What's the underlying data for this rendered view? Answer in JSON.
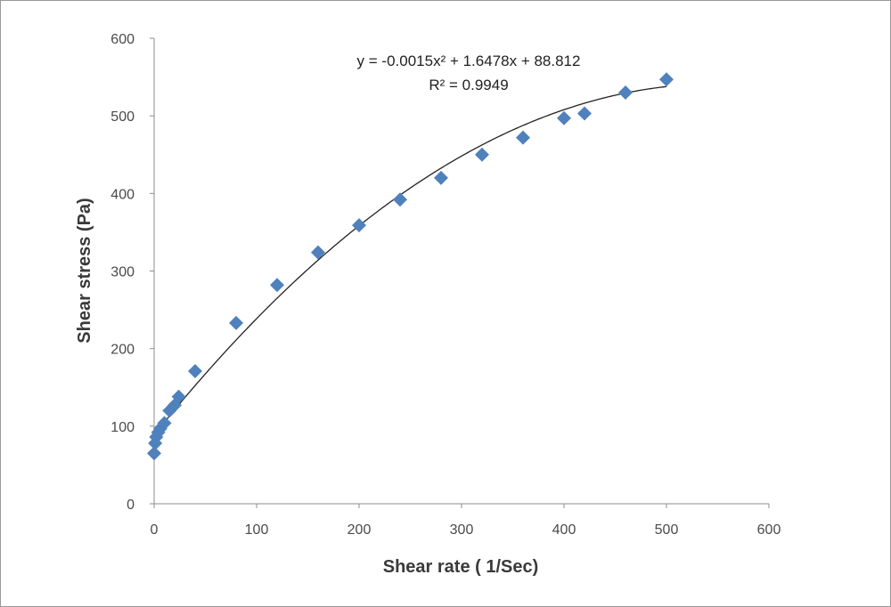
{
  "chart_data": {
    "type": "scatter",
    "title": "",
    "xlabel": "Shear rate ( 1/Sec)",
    "ylabel": "Shear stress (Pa)",
    "xlim": [
      0,
      600
    ],
    "ylim": [
      0,
      600
    ],
    "xticks": [
      "0",
      "100",
      "200",
      "300",
      "400",
      "500",
      "600"
    ],
    "yticks": [
      "0",
      "100",
      "200",
      "300",
      "400",
      "500",
      "600"
    ],
    "grid": false,
    "legend": "none",
    "marker_color": "#4f81bd",
    "trendline_color": "#222222",
    "series": [
      {
        "x": [
          0,
          1,
          2,
          4,
          6,
          10,
          15,
          20,
          24,
          40,
          80,
          120,
          160,
          200,
          240,
          280,
          320,
          360,
          400,
          420,
          460,
          500
        ],
        "y": [
          65,
          78,
          86,
          92,
          97,
          104,
          120,
          127,
          138,
          171,
          233,
          282,
          324,
          359,
          392,
          420,
          450,
          472,
          497,
          503,
          530,
          547
        ]
      }
    ],
    "trendline": {
      "type": "polynomial",
      "coefficients": [
        -0.0015,
        1.6478,
        88.812
      ],
      "x_range": [
        0,
        500
      ]
    },
    "annotations": {
      "equation": "y = -0.0015x² + 1.6478x + 88.812",
      "r_squared": "R² = 0.9949"
    }
  }
}
